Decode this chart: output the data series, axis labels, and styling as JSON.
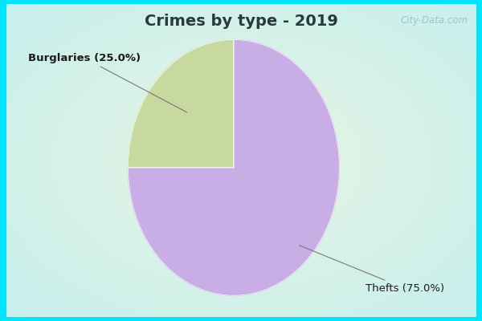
{
  "title": "Crimes by type - 2019",
  "slices": [
    {
      "label": "Thefts (75.0%)",
      "value": 75.0,
      "color": "#c9aee5"
    },
    {
      "label": "Burglaries (25.0%)",
      "value": 25.0,
      "color": "#c8d9a0"
    }
  ],
  "bg_color_outer": "#00e5ff",
  "title_fontsize": 14,
  "title_color": "#2a3a3a",
  "label_fontsize": 9.5,
  "label_color": "#1a1a1a",
  "watermark_text": "City-Data.com",
  "watermark_color": "#90bece",
  "border_thickness": 8
}
